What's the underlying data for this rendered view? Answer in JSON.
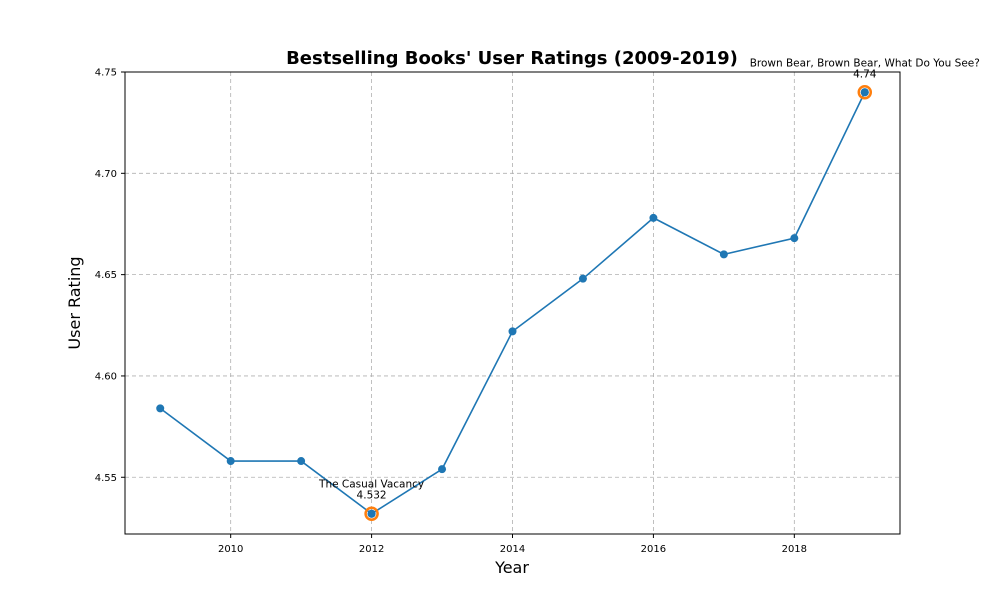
{
  "chart_data": {
    "type": "line",
    "title": "Bestselling Books' User Ratings (2009-2019)",
    "xlabel": "Year",
    "ylabel": "User Rating",
    "xlim": [
      2008.5,
      2019.5
    ],
    "ylim": [
      4.522,
      4.75
    ],
    "xticks": [
      2010,
      2012,
      2014,
      2016,
      2018
    ],
    "yticks": [
      4.55,
      4.6,
      4.65,
      4.7,
      4.75
    ],
    "ytick_labels": [
      "4.55",
      "4.60",
      "4.65",
      "4.70",
      "4.75"
    ],
    "grid": true,
    "series": [
      {
        "color": "#1f77b4",
        "x": [
          2009,
          2010,
          2011,
          2012,
          2013,
          2014,
          2015,
          2016,
          2017,
          2018,
          2019
        ],
        "y": [
          4.584,
          4.558,
          4.558,
          4.532,
          4.554,
          4.622,
          4.648,
          4.678,
          4.66,
          4.668,
          4.74
        ]
      }
    ],
    "highlight_color": "#ff7f0e",
    "annotations": [
      {
        "x": 2012,
        "y": 4.532,
        "book": "The Casual Vacancy",
        "value": "4.532"
      },
      {
        "x": 2019,
        "y": 4.74,
        "book": "Brown Bear, Brown Bear, What Do You See?",
        "value": "4.74"
      }
    ]
  }
}
